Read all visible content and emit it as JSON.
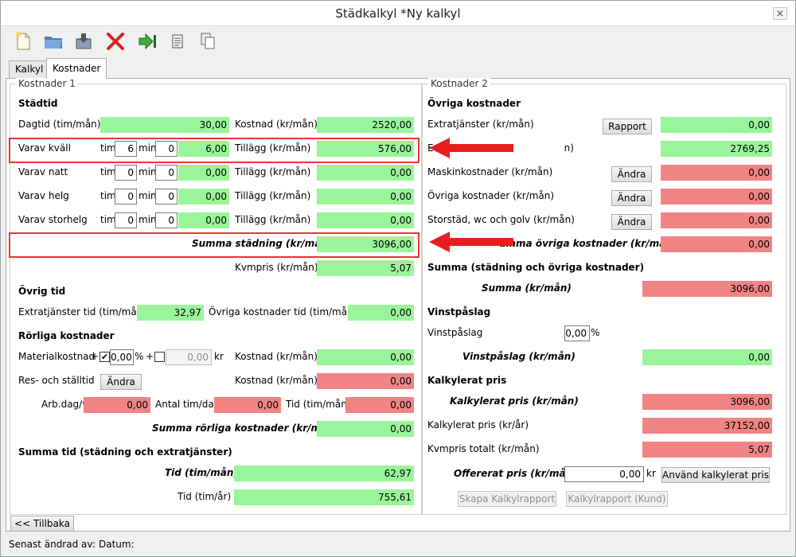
{
  "window": {
    "title": "Städkalkyl *Ny kalkyl",
    "close_label": "×"
  },
  "toolbar": {
    "icons": [
      "new-document-icon",
      "open-folder-icon",
      "save-icon",
      "delete-icon",
      "export-icon",
      "document-icon",
      "copy-icon"
    ]
  },
  "tabs": [
    {
      "label": "Kalkyl"
    },
    {
      "label": "Kostnader"
    }
  ],
  "left": {
    "legend": "Kostnader 1",
    "stadtid": {
      "header": "Städtid",
      "dagtid": {
        "label": "Dagtid (tim/mån)",
        "value": "30,00",
        "cost_label": "Kostnad (kr/mån)",
        "cost_value": "2520,00"
      },
      "kvall": {
        "label": "Varav kväll",
        "tim_label": "tim",
        "tim": "6",
        "min_label": "min",
        "min": "0",
        "value": "6,00",
        "add_label": "Tillägg (kr/mån)",
        "add_value": "576,00"
      },
      "natt": {
        "label": "Varav natt",
        "tim_label": "tim",
        "tim": "0",
        "min_label": "min",
        "min": "0",
        "value": "0,00",
        "add_label": "Tillägg (kr/mån)",
        "add_value": "0,00"
      },
      "helg": {
        "label": "Varav helg",
        "tim_label": "tim",
        "tim": "0",
        "min_label": "min",
        "min": "0",
        "value": "0,00",
        "add_label": "Tillägg (kr/mån)",
        "add_value": "0,00"
      },
      "storhelg": {
        "label": "Varav storhelg",
        "tim_label": "tim",
        "tim": "0",
        "min_label": "min",
        "min": "0",
        "value": "0,00",
        "add_label": "Tillägg (kr/mån)",
        "add_value": "0,00"
      },
      "summa_label": "Summa städning (kr/mån)",
      "summa_value": "3096,00",
      "kvmpris_label": "Kvmpris (kr/mån)",
      "kvmpris_value": "5,07"
    },
    "ovrig_tid": {
      "header": "Övrig tid",
      "extra_label": "Extratjänster tid (tim/mån)",
      "extra_value": "32,97",
      "ovriga_label": "Övriga kostnader tid (tim/mån)",
      "ovriga_value": "0,00"
    },
    "rorliga": {
      "header": "Rörliga kostnader",
      "material_label": "Materialkostnad",
      "plus": "+",
      "checkmark": "✔",
      "pct_value": "0,00",
      "pct_sign": "%",
      "plus2": "+",
      "kr_value": "0,00",
      "kr_label": "kr",
      "material_cost_label": "Kostnad (kr/mån)",
      "material_cost_value": "0,00",
      "res_label": "Res- och ställtid",
      "res_button": "Ändra",
      "res_cost_label": "Kostnad (kr/mån)",
      "res_cost_value": "0,00",
      "arbdag_label": "Arb.dag/v",
      "arbdag_value": "0,00",
      "antal_label": "Antal tim/dag",
      "antal_value": "0,00",
      "tid_label": "Tid (tim/mån)",
      "tid_value": "0,00",
      "summa_label": "Summa rörliga kostnader (kr/mån)",
      "summa_value": "0,00"
    },
    "summa_tid": {
      "header": "Summa tid (städning och extratjänster)",
      "tid_man_label": "Tid (tim/mån)",
      "tid_man_value": "62,97",
      "tid_ar_label": "Tid (tim/år)",
      "tid_ar_value": "755,61"
    }
  },
  "right": {
    "legend": "Kostnader 2",
    "ovriga": {
      "header": "Övriga kostnader",
      "extratjanster_label": "Extratjänster (kr/mån)",
      "rapport_button": "Rapport",
      "extratjanster_value": "0,00",
      "row2_value": "2769,25",
      "maskin_label": "Maskinkostnader (kr/mån)",
      "maskin_button": "Ändra",
      "maskin_value": "0,00",
      "ovriga_label": "Övriga kostnader (kr/mån)",
      "ovriga_button": "Ändra",
      "ovriga_value": "0,00",
      "storstad_label": "Storstäd, wc och golv (kr/mån)",
      "storstad_button": "Ändra",
      "storstad_value": "0,00",
      "summa_label": "umma övriga kostnader (kr/mån)",
      "summa_value": "0,00"
    },
    "summa": {
      "header": "Summa (städning och övriga kostnader)",
      "label": "Summa (kr/mån)",
      "value": "3096,00"
    },
    "vinst": {
      "header": "Vinstpåslag",
      "label": "Vinstpåslag",
      "input_value": "0,00",
      "pct": "%",
      "result_label": "Vinstpåslag (kr/mån)",
      "result_value": "0,00"
    },
    "kalkylerat": {
      "header": "Kalkylerat pris",
      "man_label": "Kalkylerat pris (kr/mån)",
      "man_value": "3096,00",
      "ar_label": "Kalkylerat pris (kr/år)",
      "ar_value": "37152,00",
      "kvm_label": "Kvmpris totalt (kr/mån)",
      "kvm_value": "5,07",
      "offer_label": "Offererat pris (kr/mån)",
      "offer_value": "0,00",
      "offer_unit": "kr",
      "use_button": "Använd kalkylerat pris",
      "report_button": "Skapa Kalkylrapport",
      "report_kund_button": "Kalkylrapport (Kund)"
    }
  },
  "back_button": "<< Tillbaka",
  "status": {
    "last_changed_label": "Senast ändrad av:",
    "date_label": "Datum:"
  }
}
